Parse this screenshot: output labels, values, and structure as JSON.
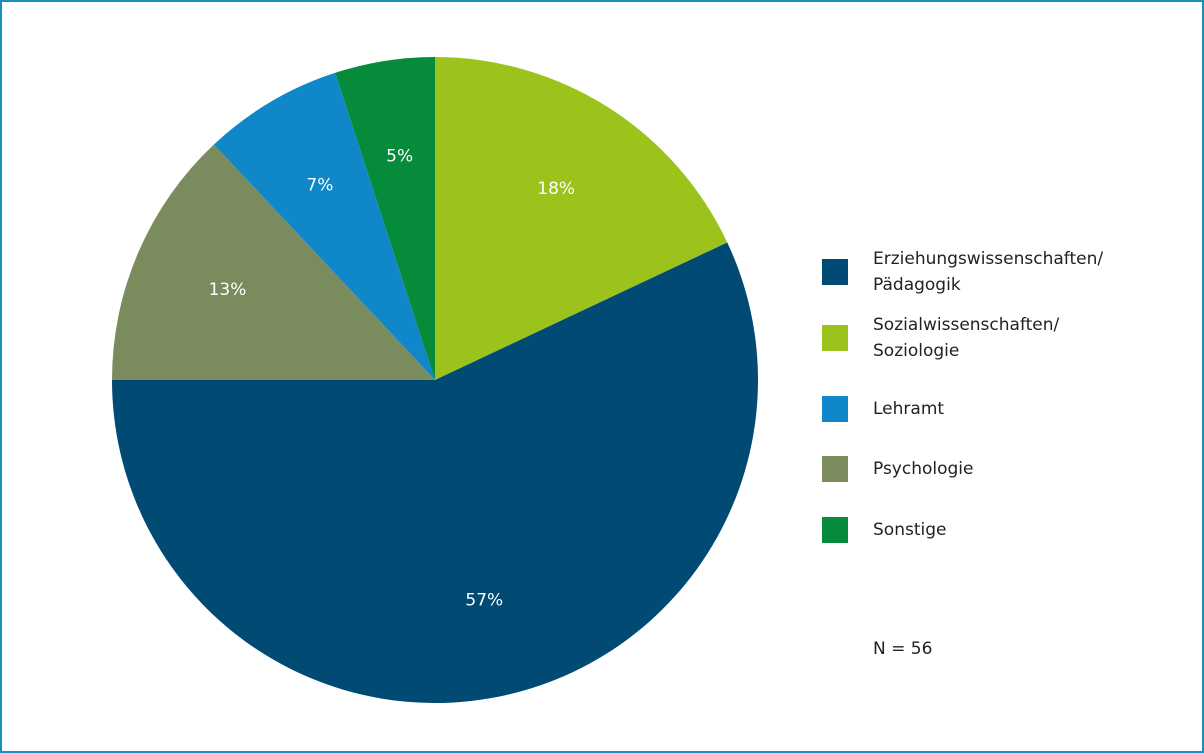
{
  "chart_data": {
    "type": "pie",
    "categories": [
      "Erziehungswissenschaften/Pädagogik",
      "Sozialwissenschaften/Soziologie",
      "Lehramt",
      "Psychologie",
      "Sonstige"
    ],
    "values": [
      57,
      18,
      7,
      13,
      5
    ],
    "value_labels": [
      "57%",
      "18%",
      "7%",
      "13%",
      "5%"
    ],
    "colors": [
      "#004a73",
      "#9bc31c",
      "#0f87c9",
      "#7a8c5e",
      "#068b3b"
    ],
    "legend": "right",
    "annotation": "N = 56"
  }
}
